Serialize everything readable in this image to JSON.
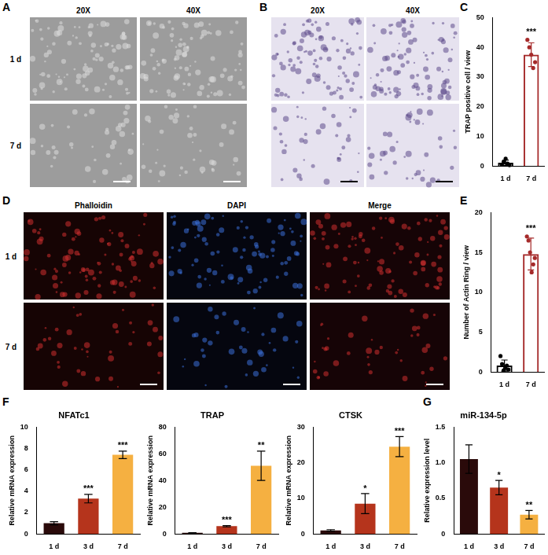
{
  "image_panels": [
    {
      "panel": "A",
      "columns": [
        "20X",
        "40X"
      ],
      "rows": [
        "1 d",
        "7 d"
      ]
    },
    {
      "panel": "B",
      "columns": [
        "20X",
        "40X"
      ],
      "rows": [
        "1 d",
        "7 d"
      ]
    },
    {
      "panel": "D",
      "columns": [
        "Phalloidin",
        "DAPI",
        "Merge"
      ],
      "rows": [
        "1 d",
        "7 d"
      ]
    }
  ],
  "chart_data": [
    {
      "panel": "C",
      "type": "bar",
      "categories": [
        "1 d",
        "7 d"
      ],
      "values": [
        1.1,
        37.5
      ],
      "errors": [
        0.9,
        4
      ],
      "points": [
        [
          0.5,
          1.5,
          2.5,
          0.8,
          0.3
        ],
        [
          42.5,
          40,
          37.5,
          33,
          35
        ]
      ],
      "significance": [
        null,
        "***"
      ],
      "colors": [
        "#000000",
        "#a52a2a"
      ],
      "ylabel": "TRAP positive cell / view",
      "ylim": [
        0,
        50
      ],
      "yticks": [
        0,
        10,
        20,
        30,
        40,
        50
      ],
      "grid": false
    },
    {
      "panel": "E",
      "type": "bar",
      "categories": [
        "1 d",
        "7 d"
      ],
      "values": [
        0.8,
        14.8
      ],
      "errors": [
        0.7,
        2
      ],
      "points": [
        [
          2,
          1,
          0.2,
          0.5,
          0.8,
          0.3
        ],
        [
          17,
          16.5,
          15,
          12.5,
          13.5,
          14.3
        ]
      ],
      "significance": [
        null,
        "***"
      ],
      "colors": [
        "#000000",
        "#a52a2a"
      ],
      "ylabel": "Number of Actin Ring / view",
      "ylim": [
        0,
        20
      ],
      "yticks": [
        0,
        5,
        10,
        15,
        20
      ],
      "grid": false
    },
    {
      "panel": "F",
      "type": "bar",
      "title": "NFATc1",
      "categories": [
        "1 d",
        "3 d",
        "7 d"
      ],
      "values": [
        1.0,
        3.3,
        7.4
      ],
      "errors": [
        0.15,
        0.4,
        0.35
      ],
      "significance": [
        null,
        "***",
        "***"
      ],
      "colors": [
        "#2a0a0a",
        "#b5341c",
        "#f5b041"
      ],
      "ylabel": "Relative mRNA expression",
      "ylim": [
        0,
        10
      ],
      "yticks": [
        0,
        2,
        4,
        6,
        8,
        10
      ],
      "grid": false
    },
    {
      "type": "bar",
      "title": "TRAP",
      "categories": [
        "1 d",
        "3 d",
        "7 d"
      ],
      "values": [
        0.8,
        5.8,
        51
      ],
      "errors": [
        0.2,
        0.5,
        11
      ],
      "significance": [
        null,
        "***",
        "**"
      ],
      "colors": [
        "#2a0a0a",
        "#b5341c",
        "#f5b041"
      ],
      "ylabel": "Relative mRNA expression",
      "ylim": [
        0,
        80
      ],
      "yticks": [
        0,
        20,
        40,
        60,
        80
      ],
      "grid": false
    },
    {
      "type": "bar",
      "title": "CTSK",
      "categories": [
        "1 d",
        "3 d",
        "7 d"
      ],
      "values": [
        1.0,
        8.5,
        24.5
      ],
      "errors": [
        0.2,
        2.8,
        2.8
      ],
      "significance": [
        null,
        "*",
        "***"
      ],
      "colors": [
        "#2a0a0a",
        "#b5341c",
        "#f5b041"
      ],
      "ylabel": "Relative mRNA expression",
      "ylim": [
        0,
        30
      ],
      "yticks": [
        0,
        10,
        20,
        30
      ],
      "grid": false
    },
    {
      "panel": "G",
      "type": "bar",
      "title": "miR-134-5p",
      "categories": [
        "1 d",
        "3 d",
        "7 d"
      ],
      "values": [
        1.05,
        0.65,
        0.27
      ],
      "errors": [
        0.2,
        0.1,
        0.06
      ],
      "significance": [
        null,
        "*",
        "**"
      ],
      "colors": [
        "#2a0a0a",
        "#b5341c",
        "#f5b041"
      ],
      "ylabel": "Relative expression level",
      "ylim": [
        0,
        1.5
      ],
      "yticks": [
        0,
        0.5,
        {
          "value": 1,
          "label": "1.0"
        },
        1.5
      ],
      "grid": false
    }
  ]
}
